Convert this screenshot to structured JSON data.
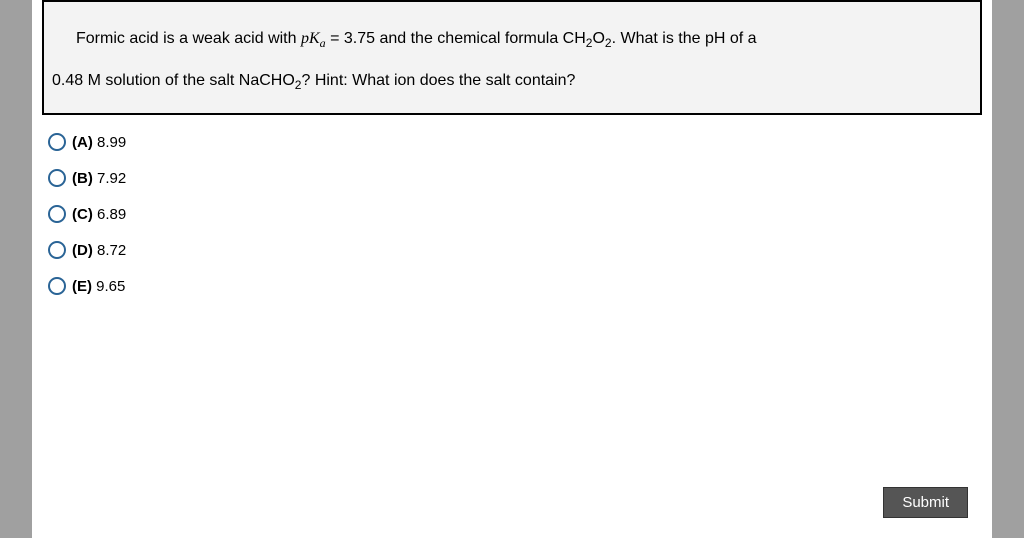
{
  "question": {
    "line1_pre": "Formic acid is a weak acid with ",
    "pka_symbol": "pK",
    "pka_sub": "a",
    "pka_eq": " = 3.75",
    "line1_mid": " and the chemical formula CH",
    "ch_sub1": "2",
    "ch_mid": "O",
    "ch_sub2": "2",
    "line1_post": ".  What is the pH of a",
    "line2_pre": "0.48 M solution of the salt NaCHO",
    "salt_sub": "2",
    "line2_post": "?   Hint: What ion does the salt contain?"
  },
  "options": [
    {
      "letter": "(A)",
      "value": " 8.99"
    },
    {
      "letter": "(B)",
      "value": " 7.92"
    },
    {
      "letter": "(C)",
      "value": " 6.89"
    },
    {
      "letter": "(D)",
      "value": " 8.72"
    },
    {
      "letter": "(E)",
      "value": " 9.65"
    }
  ],
  "submit_label": "Submit",
  "colors": {
    "page_bg": "#a0a0a0",
    "box_bg": "#f3f3f3",
    "box_border": "#000000",
    "radio_border": "#2a6496",
    "submit_bg": "#555555",
    "submit_fg": "#ffffff"
  }
}
